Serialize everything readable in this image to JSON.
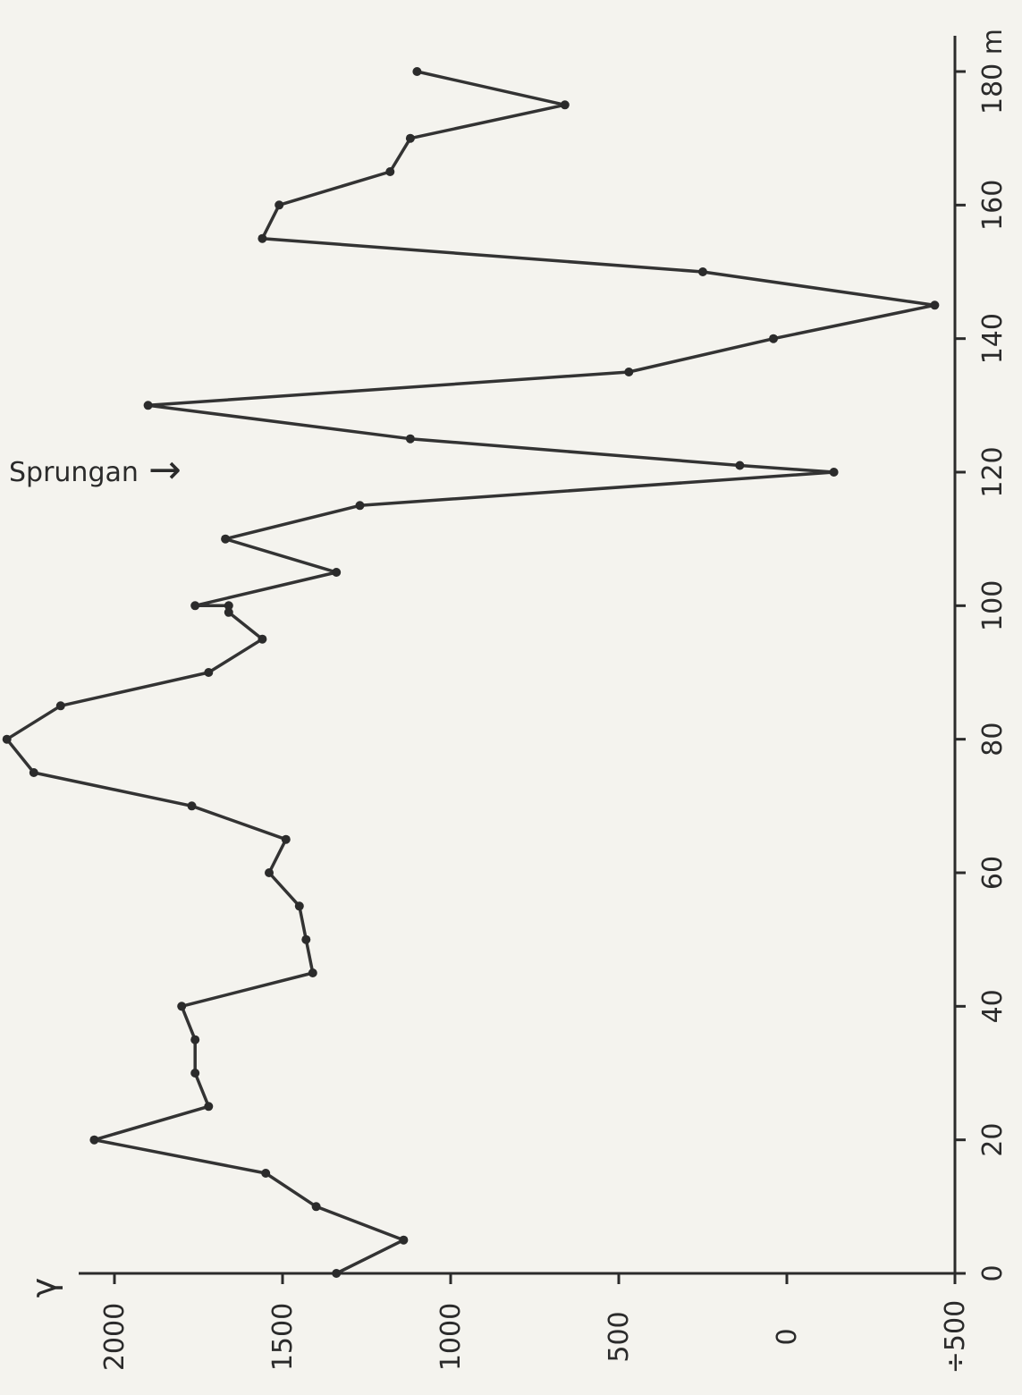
{
  "chart_data": {
    "type": "line",
    "title": "",
    "ylabel": "γ",
    "xunit": "m",
    "xlim": [
      0,
      180
    ],
    "ylim": [
      -500,
      2000
    ],
    "x_ticks": [
      {
        "value": 0,
        "label": "0"
      },
      {
        "value": 20,
        "label": "20"
      },
      {
        "value": 40,
        "label": "40"
      },
      {
        "value": 60,
        "label": "60"
      },
      {
        "value": 80,
        "label": "80"
      },
      {
        "value": 100,
        "label": "100"
      },
      {
        "value": 120,
        "label": "120"
      },
      {
        "value": 140,
        "label": "140"
      },
      {
        "value": 160,
        "label": "160"
      },
      {
        "value": 180,
        "label": "180 m"
      }
    ],
    "y_ticks": [
      {
        "value": 2000,
        "label": "2000"
      },
      {
        "value": 1500,
        "label": "1500"
      },
      {
        "value": 1000,
        "label": "1000"
      },
      {
        "value": 500,
        "label": "500"
      },
      {
        "value": 0,
        "label": "0"
      },
      {
        "value": -500,
        "label": "÷500"
      }
    ],
    "orientation": "rotated 90° counter-clockwise (distance axis vertical, value axis horizontal)",
    "series": [
      {
        "values": [
          {
            "x": 0,
            "y": 1340
          },
          {
            "x": 5,
            "y": 1140
          },
          {
            "x": 10,
            "y": 1400
          },
          {
            "x": 15,
            "y": 1550
          },
          {
            "x": 20,
            "y": 2060
          },
          {
            "x": 25,
            "y": 1720
          },
          {
            "x": 30,
            "y": 1760
          },
          {
            "x": 35,
            "y": 1760
          },
          {
            "x": 40,
            "y": 1800
          },
          {
            "x": 45,
            "y": 1410
          },
          {
            "x": 50,
            "y": 1430
          },
          {
            "x": 55,
            "y": 1450
          },
          {
            "x": 60,
            "y": 1540
          },
          {
            "x": 65,
            "y": 1490
          },
          {
            "x": 70,
            "y": 1770
          },
          {
            "x": 75,
            "y": 2240
          },
          {
            "x": 80,
            "y": 2320
          },
          {
            "x": 85,
            "y": 2160
          },
          {
            "x": 90,
            "y": 1720
          },
          {
            "x": 95,
            "y": 1560
          },
          {
            "x": 99,
            "y": 1660
          },
          {
            "x": 100,
            "y": 1660
          },
          {
            "x": 100,
            "y": 1760
          },
          {
            "x": 105,
            "y": 1340
          },
          {
            "x": 110,
            "y": 1670
          },
          {
            "x": 115,
            "y": 1270
          },
          {
            "x": 120,
            "y": -140
          },
          {
            "x": 121,
            "y": 140
          },
          {
            "x": 125,
            "y": 1120
          },
          {
            "x": 130,
            "y": 1900
          },
          {
            "x": 135,
            "y": 470
          },
          {
            "x": 140,
            "y": 40
          },
          {
            "x": 145,
            "y": -440
          },
          {
            "x": 150,
            "y": 250
          },
          {
            "x": 155,
            "y": 1560
          },
          {
            "x": 160,
            "y": 1510
          },
          {
            "x": 165,
            "y": 1180
          },
          {
            "x": 170,
            "y": 1120
          },
          {
            "x": 175,
            "y": 660
          },
          {
            "x": 180,
            "y": 1100
          }
        ]
      }
    ],
    "annotations": [
      {
        "text": "Sprungan",
        "x": 120,
        "arrow": "→"
      }
    ],
    "grid": false
  }
}
